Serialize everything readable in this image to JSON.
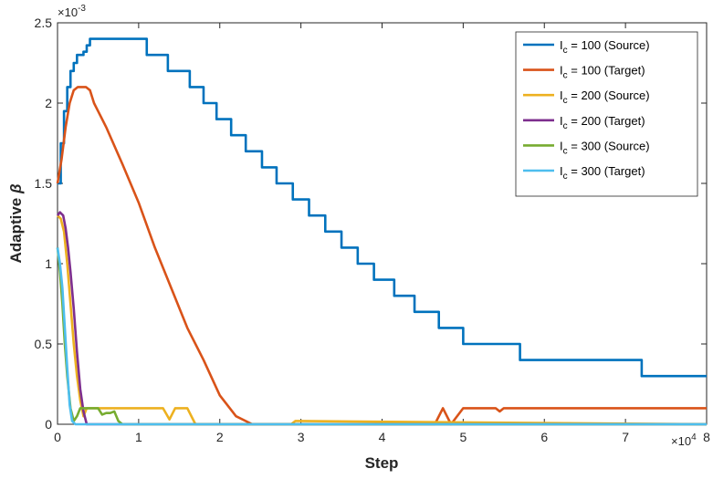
{
  "chart_data": {
    "type": "line",
    "xlabel": "Step",
    "ylabel": "Adaptive",
    "ylabel_symbol": "β",
    "x_exponent_base": "×10",
    "x_exponent_power": "4",
    "y_exponent_base": "×10",
    "y_exponent_power": "-3",
    "xlim": [
      0,
      80000
    ],
    "ylim": [
      0,
      0.0025
    ],
    "x_ticks": [
      0,
      10000,
      20000,
      30000,
      40000,
      50000,
      60000,
      70000,
      80000
    ],
    "x_tick_labels": [
      "0",
      "1",
      "2",
      "3",
      "4",
      "5",
      "6",
      "7",
      "8"
    ],
    "y_ticks": [
      0,
      0.0005,
      0.001,
      0.0015,
      0.002,
      0.0025
    ],
    "y_tick_labels": [
      "0",
      "0.5",
      "1",
      "1.5",
      "2",
      "2.5"
    ],
    "grid": false,
    "legend_position": "top-right",
    "series": [
      {
        "name": "I",
        "name_sub": "c",
        "name_rest": " = 100 (Source)",
        "color": "#0072BD",
        "step": true,
        "x": [
          0,
          400,
          800,
          1200,
          1600,
          2000,
          2400,
          2800,
          3200,
          3600,
          4000,
          10000,
          11000,
          12700,
          13600,
          15500,
          16300,
          17200,
          18000,
          19000,
          19600,
          20500,
          21400,
          22300,
          23200,
          24100,
          25200,
          26000,
          27000,
          28000,
          29000,
          30000,
          31000,
          32000,
          33000,
          34000,
          35000,
          36000,
          37000,
          38000,
          39000,
          40300,
          41500,
          42800,
          44000,
          45500,
          47000,
          48400,
          50000,
          51500,
          52600,
          56000,
          57000,
          65000,
          71000,
          72000,
          80000
        ],
        "y": [
          0.0015,
          0.00175,
          0.00195,
          0.0021,
          0.0022,
          0.00225,
          0.0023,
          0.0023,
          0.00232,
          0.00236,
          0.0024,
          0.0024,
          0.0023,
          0.0023,
          0.0022,
          0.0022,
          0.0021,
          0.0021,
          0.002,
          0.002,
          0.0019,
          0.0019,
          0.0018,
          0.0018,
          0.0017,
          0.0017,
          0.0016,
          0.0016,
          0.0015,
          0.0015,
          0.0014,
          0.0014,
          0.0013,
          0.0013,
          0.0012,
          0.0012,
          0.0011,
          0.0011,
          0.001,
          0.001,
          0.0009,
          0.0009,
          0.0008,
          0.0008,
          0.0007,
          0.0007,
          0.0006,
          0.0006,
          0.0005,
          0.0005,
          0.0005,
          0.0005,
          0.0004,
          0.0004,
          0.0004,
          0.0003,
          0.0003
        ]
      },
      {
        "name": "I",
        "name_sub": "c",
        "name_rest": " = 100 (Target)",
        "color": "#D95319",
        "step": false,
        "x": [
          0,
          500,
          1000,
          1500,
          2000,
          2500,
          3000,
          3500,
          4000,
          4500,
          5000,
          6000,
          8000,
          10000,
          12000,
          14000,
          16000,
          18000,
          20000,
          22000,
          24000,
          24500,
          25000,
          30000,
          35000,
          40000,
          45000,
          46500,
          47500,
          48500,
          50000,
          54000,
          54500,
          55000,
          60000,
          65000,
          70000,
          75000,
          80000
        ],
        "y": [
          0.0015,
          0.00165,
          0.00185,
          0.002,
          0.00208,
          0.0021,
          0.0021,
          0.0021,
          0.00208,
          0.002,
          0.00195,
          0.00185,
          0.00162,
          0.00138,
          0.0011,
          0.00085,
          0.0006,
          0.0004,
          0.00018,
          5e-05,
          0.0,
          0.0,
          0.0,
          0.0,
          0.0,
          0.0,
          0.0,
          0.0,
          0.0001,
          0.0,
          0.0001,
          0.0001,
          8e-05,
          0.0001,
          0.0001,
          0.0001,
          0.0001,
          0.0001,
          0.0001
        ]
      },
      {
        "name": "I",
        "name_sub": "c",
        "name_rest": " = 200 (Source)",
        "color": "#EDB120",
        "step": false,
        "x": [
          0,
          400,
          800,
          1200,
          1600,
          2000,
          2400,
          2800,
          3200,
          3600,
          4000,
          5000,
          7000,
          10000,
          13000,
          13800,
          14500,
          16000,
          17000,
          18000,
          25000,
          28800,
          29300,
          29800,
          80000
        ],
        "y": [
          0.0013,
          0.00128,
          0.0012,
          0.001,
          0.00075,
          0.0005,
          0.0003,
          0.00015,
          5e-05,
          0.0001,
          0.0001,
          0.0001,
          0.0001,
          0.0001,
          0.0001,
          3e-05,
          0.0001,
          0.0001,
          0.0,
          0.0,
          0.0,
          0.0,
          2e-05,
          2e-05,
          0.0
        ]
      },
      {
        "name": "I",
        "name_sub": "c",
        "name_rest": " = 200 (Target)",
        "color": "#7E2F8E",
        "step": false,
        "x": [
          0,
          300,
          700,
          1000,
          1300,
          1600,
          2000,
          2400,
          2800,
          3200,
          3600,
          4000,
          80000
        ],
        "y": [
          0.0013,
          0.00132,
          0.0013,
          0.00122,
          0.0011,
          0.00095,
          0.00072,
          0.00045,
          0.00022,
          8e-05,
          0.0,
          0.0,
          0.0
        ]
      },
      {
        "name": "I",
        "name_sub": "c",
        "name_rest": " = 300 (Source)",
        "color": "#77AC30",
        "step": false,
        "x": [
          0,
          300,
          600,
          900,
          1200,
          1600,
          2000,
          2400,
          2800,
          3200,
          3600,
          4000,
          5000,
          5500,
          6000,
          6500,
          7000,
          7500,
          8000,
          80000
        ],
        "y": [
          0.0011,
          0.00095,
          0.00075,
          0.0005,
          0.0003,
          0.0001,
          2e-05,
          5e-05,
          0.0001,
          0.0001,
          0.0001,
          0.0001,
          0.0001,
          6e-05,
          7e-05,
          7e-05,
          8e-05,
          2e-05,
          0.0,
          0.0
        ]
      },
      {
        "name": "I",
        "name_sub": "c",
        "name_rest": " = 300 (Target)",
        "color": "#4DBEEE",
        "step": false,
        "x": [
          0,
          300,
          600,
          900,
          1200,
          1500,
          1800,
          2200,
          80000
        ],
        "y": [
          0.0011,
          0.001,
          0.00085,
          0.0006,
          0.00035,
          0.00012,
          2e-05,
          0.0,
          0.0
        ]
      }
    ]
  }
}
